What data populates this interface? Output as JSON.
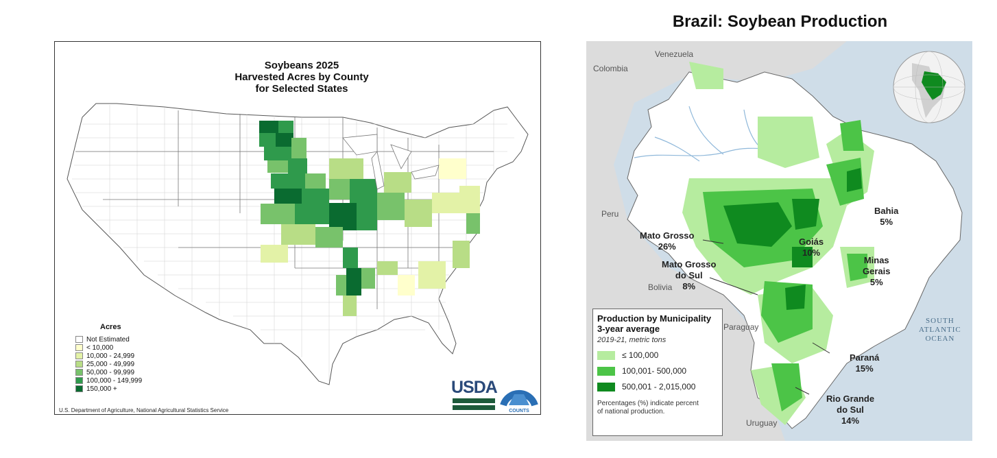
{
  "usa": {
    "title_lines": [
      "Soybeans 2025",
      "Harvested Acres by County",
      "for Selected States"
    ],
    "legend_title": "Acres",
    "legend": [
      {
        "label": "Not Estimated",
        "color": "#ffffff"
      },
      {
        "label": "< 10,000",
        "color": "#ffffcc"
      },
      {
        "label": "10,000 - 24,999",
        "color": "#e3f2a7"
      },
      {
        "label": "25,000 - 49,999",
        "color": "#b8dd86"
      },
      {
        "label": "50,000 - 99,999",
        "color": "#78c26b"
      },
      {
        "label": "100,000 - 149,999",
        "color": "#2f9a4c"
      },
      {
        "label": "150,000 +",
        "color": "#0a6b30"
      }
    ],
    "credit": "U.S. Department of Agriculture, National Agricultural Statistics Service",
    "logo_text": "USDA",
    "badge_text_top": "AGRICULTURE",
    "badge_text_bottom": "COUNTS"
  },
  "brazil": {
    "title": "Brazil: Soybean Production",
    "countries": [
      "Venezuela",
      "Colombia",
      "Peru",
      "Bolivia",
      "Paraguay",
      "Uruguay"
    ],
    "ocean_lines": [
      "SOUTH",
      "ATLANTIC",
      "OCEAN"
    ],
    "states": [
      {
        "name": "Mato Grosso",
        "pct": "26%"
      },
      {
        "name_lines": [
          "Mato Grosso",
          "do Sul"
        ],
        "pct": "8%"
      },
      {
        "name": "Goiás",
        "pct": "10%"
      },
      {
        "name": "Bahia",
        "pct": "5%"
      },
      {
        "name_lines": [
          "Minas",
          "Gerais"
        ],
        "pct": "5%"
      },
      {
        "name": "Paraná",
        "pct": "15%"
      },
      {
        "name_lines": [
          "Rio Grande",
          "do Sul"
        ],
        "pct": "14%"
      }
    ],
    "legend": {
      "title_lines": [
        "Production by Municipality",
        "3-year average"
      ],
      "subtitle": "2019-21, metric tons",
      "items": [
        {
          "label": "≤ 100,000",
          "color": "#b6ec9f"
        },
        {
          "label": "100,001- 500,000",
          "color": "#4cc447"
        },
        {
          "label": "500,001 - 2,015,000",
          "color": "#0f8a1f"
        }
      ],
      "note": "Percentages (%) indicate percent of national production."
    },
    "colors": {
      "land": "#ffffff",
      "neighbor": "#dcdcdc",
      "sea": "#cfdde8",
      "river": "#8fb8da"
    }
  }
}
